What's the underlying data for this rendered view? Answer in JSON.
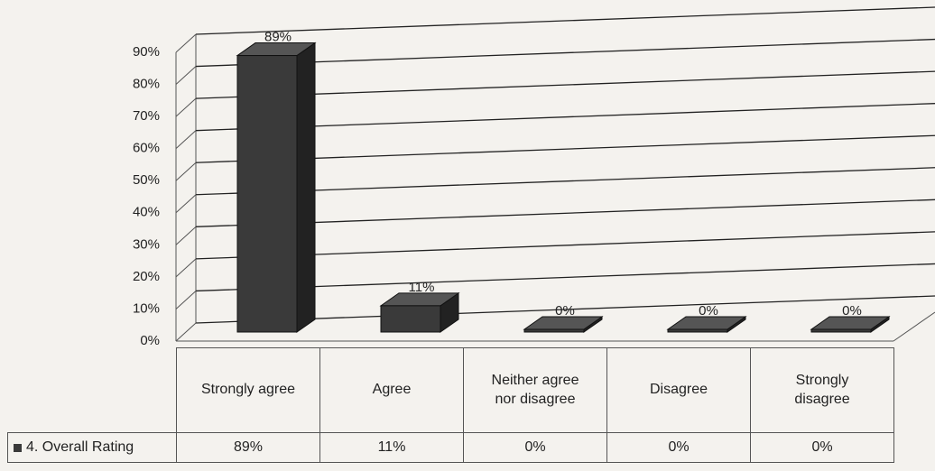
{
  "chart_data": {
    "type": "bar3d",
    "categories": [
      "Strongly agree",
      "Agree",
      "Neither agree nor disagree",
      "Disagree",
      "Strongly disagree"
    ],
    "series": [
      {
        "name": "4. Overall Rating",
        "color": "#3a3a3a",
        "values": [
          89,
          11,
          0,
          0,
          0
        ],
        "value_labels": [
          "89%",
          "11%",
          "0%",
          "0%",
          "0%"
        ]
      }
    ],
    "ylim": [
      0,
      90
    ],
    "yticks": [
      {
        "value": 0,
        "label": "0%"
      },
      {
        "value": 10,
        "label": "10%"
      },
      {
        "value": 20,
        "label": "20%"
      },
      {
        "value": 30,
        "label": "30%"
      },
      {
        "value": 40,
        "label": "40%"
      },
      {
        "value": 50,
        "label": "50%"
      },
      {
        "value": 60,
        "label": "60%"
      },
      {
        "value": 70,
        "label": "70%"
      },
      {
        "value": 80,
        "label": "80%"
      },
      {
        "value": 90,
        "label": "90%"
      }
    ],
    "grid": true,
    "data_table": true
  }
}
